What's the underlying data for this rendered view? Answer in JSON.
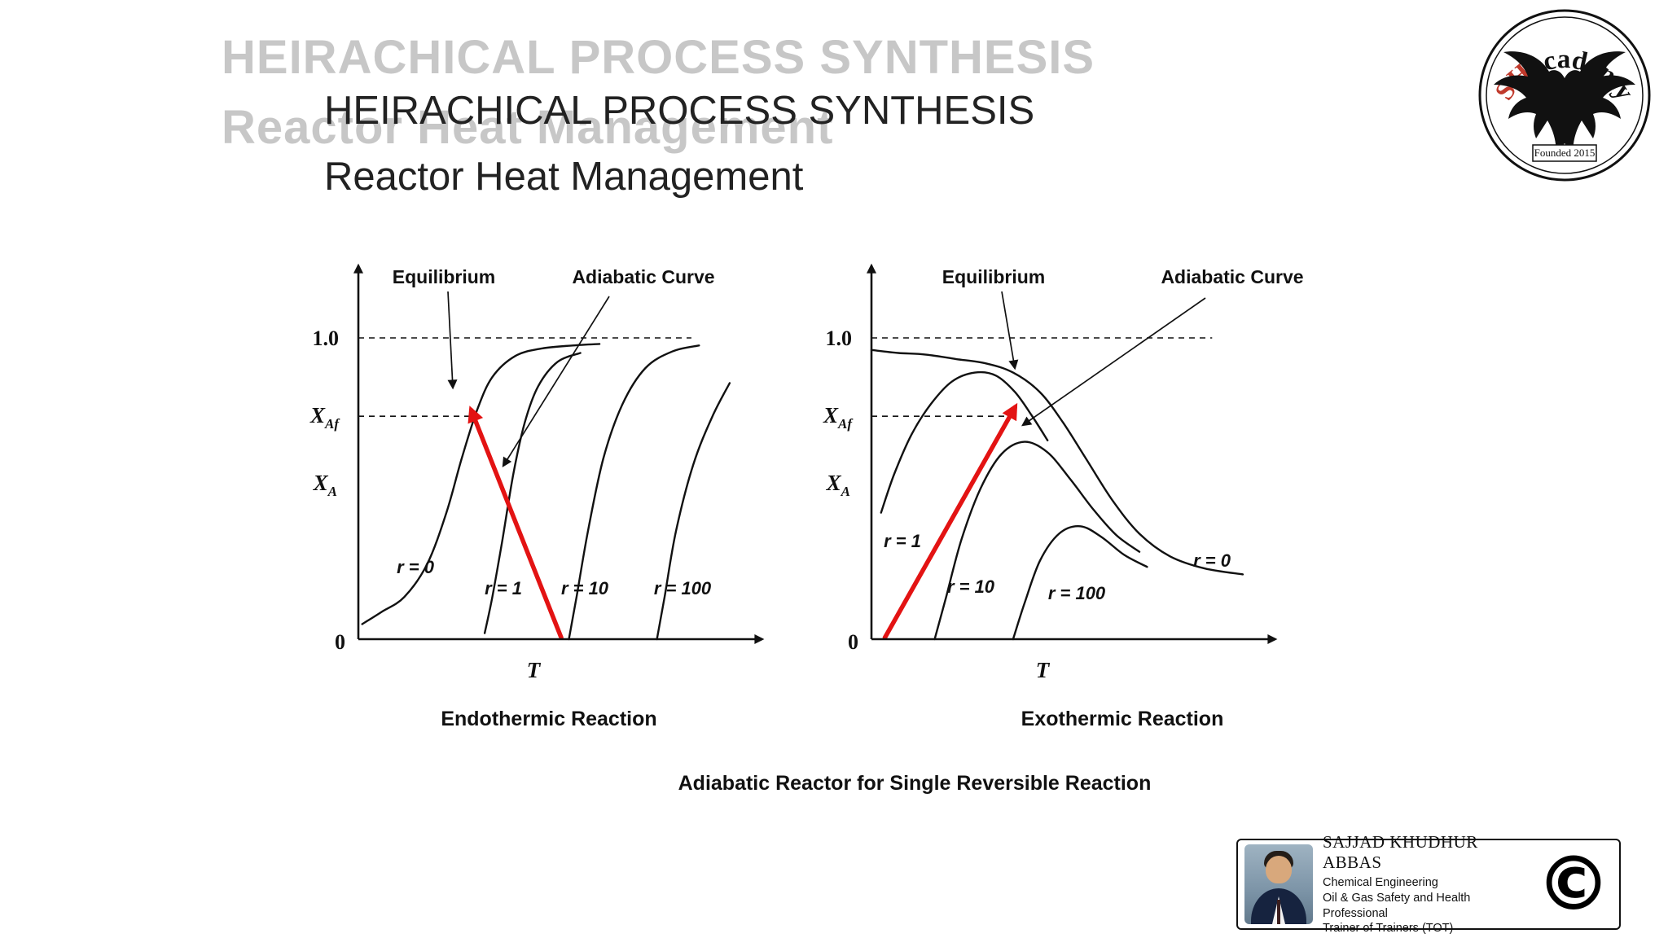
{
  "slide": {
    "ghost_title": {
      "line1": "HEIRACHICAL PROCESS SYNTHESIS",
      "line2": "Reactor Heat Management"
    },
    "title": {
      "line1": "HEIRACHICAL PROCESS SYNTHESIS",
      "line2": "Reactor Heat Management"
    },
    "caption": "Adiabatic Reactor for Single Reversible Reaction"
  },
  "logo": {
    "sh": "SH",
    "academy": "academy",
    "founded": "Founded 2015",
    "accent_color": "#c0392b"
  },
  "credit": {
    "name": "SAJJAD KHUDHUR ABBAS",
    "lines": [
      "Chemical Engineering",
      "Oil & Gas Safety and Health Professional",
      "Trainer of Trainers (TOT)"
    ],
    "copyright": "©"
  },
  "chart_data": [
    {
      "id": "endothermic",
      "type": "line",
      "title": "Endothermic Reaction",
      "xlabel": "T",
      "ylabel_main": "X",
      "ylabel_sub": "A",
      "yticks": {
        "top": "1.0",
        "xaf_main": "X",
        "xaf_sub": "Af",
        "zero": "0"
      },
      "annotations": {
        "equilibrium": "Equilibrium",
        "adiabatic": "Adiabatic Curve"
      },
      "ylim": [
        0,
        1.0
      ],
      "grid": false,
      "reference_lines": [
        {
          "y": 1.0,
          "x_end": 0.87
        },
        {
          "y": 0.74,
          "x_end": 0.295
        }
      ],
      "series": [
        {
          "name": "equilibrium-r0",
          "label": "r = 0",
          "points": [
            [
              0.01,
              0.05
            ],
            [
              0.06,
              0.09
            ],
            [
              0.12,
              0.14
            ],
            [
              0.18,
              0.25
            ],
            [
              0.23,
              0.42
            ],
            [
              0.27,
              0.6
            ],
            [
              0.31,
              0.76
            ],
            [
              0.35,
              0.87
            ],
            [
              0.41,
              0.94
            ],
            [
              0.48,
              0.965
            ],
            [
              0.56,
              0.975
            ],
            [
              0.63,
              0.98
            ]
          ]
        },
        {
          "name": "adiabatic-r1",
          "label": "r = 1",
          "points": [
            [
              0.33,
              0.02
            ],
            [
              0.35,
              0.14
            ],
            [
              0.375,
              0.32
            ],
            [
              0.405,
              0.55
            ],
            [
              0.435,
              0.72
            ],
            [
              0.47,
              0.84
            ],
            [
              0.52,
              0.92
            ],
            [
              0.58,
              0.95
            ]
          ]
        },
        {
          "name": "adiabatic-r10",
          "label": "r = 10",
          "points": [
            [
              0.55,
              0.0
            ],
            [
              0.57,
              0.14
            ],
            [
              0.6,
              0.36
            ],
            [
              0.64,
              0.6
            ],
            [
              0.69,
              0.78
            ],
            [
              0.75,
              0.9
            ],
            [
              0.82,
              0.955
            ],
            [
              0.89,
              0.975
            ]
          ]
        },
        {
          "name": "adiabatic-r100",
          "label": "r = 100",
          "points": [
            [
              0.78,
              0.0
            ],
            [
              0.8,
              0.14
            ],
            [
              0.83,
              0.36
            ],
            [
              0.875,
              0.58
            ],
            [
              0.925,
              0.74
            ],
            [
              0.97,
              0.85
            ]
          ]
        }
      ],
      "operating_line": {
        "from": [
          0.53,
          0.005
        ],
        "to": [
          0.295,
          0.76
        ],
        "color": "#e31313"
      }
    },
    {
      "id": "exothermic",
      "type": "line",
      "title": "Exothermic Reaction",
      "xlabel": "T",
      "ylabel_main": "X",
      "ylabel_sub": "A",
      "yticks": {
        "top": "1.0",
        "xaf_main": "X",
        "xaf_sub": "Af",
        "zero": "0"
      },
      "annotations": {
        "equilibrium": "Equilibrium",
        "adiabatic": "Adiabatic Curve"
      },
      "ylim": [
        0,
        1.0
      ],
      "grid": false,
      "reference_lines": [
        {
          "y": 1.0,
          "x_end": 0.89
        },
        {
          "y": 0.74,
          "x_end": 0.375
        }
      ],
      "series": [
        {
          "name": "equilibrium-r0",
          "label": "r = 0",
          "points": [
            [
              0.0,
              0.96
            ],
            [
              0.07,
              0.95
            ],
            [
              0.14,
              0.945
            ],
            [
              0.22,
              0.93
            ],
            [
              0.3,
              0.915
            ],
            [
              0.37,
              0.885
            ],
            [
              0.44,
              0.82
            ],
            [
              0.5,
              0.72
            ],
            [
              0.56,
              0.6
            ],
            [
              0.63,
              0.46
            ],
            [
              0.7,
              0.35
            ],
            [
              0.78,
              0.275
            ],
            [
              0.87,
              0.235
            ],
            [
              0.97,
              0.215
            ]
          ]
        },
        {
          "name": "adiabatic-r1",
          "label": "r = 1",
          "points": [
            [
              0.025,
              0.42
            ],
            [
              0.06,
              0.55
            ],
            [
              0.105,
              0.68
            ],
            [
              0.155,
              0.78
            ],
            [
              0.21,
              0.855
            ],
            [
              0.27,
              0.885
            ],
            [
              0.325,
              0.875
            ],
            [
              0.375,
              0.82
            ],
            [
              0.42,
              0.74
            ],
            [
              0.46,
              0.66
            ]
          ]
        },
        {
          "name": "adiabatic-r10",
          "label": "r = 10",
          "points": [
            [
              0.165,
              0.0
            ],
            [
              0.195,
              0.14
            ],
            [
              0.235,
              0.33
            ],
            [
              0.285,
              0.5
            ],
            [
              0.34,
              0.615
            ],
            [
              0.4,
              0.655
            ],
            [
              0.46,
              0.62
            ],
            [
              0.52,
              0.53
            ],
            [
              0.58,
              0.43
            ],
            [
              0.64,
              0.345
            ],
            [
              0.7,
              0.29
            ]
          ]
        },
        {
          "name": "adiabatic-r100",
          "label": "r = 100",
          "points": [
            [
              0.37,
              0.0
            ],
            [
              0.4,
              0.12
            ],
            [
              0.44,
              0.26
            ],
            [
              0.49,
              0.35
            ],
            [
              0.545,
              0.375
            ],
            [
              0.6,
              0.34
            ],
            [
              0.66,
              0.28
            ],
            [
              0.72,
              0.24
            ]
          ]
        }
      ],
      "operating_line": {
        "from": [
          0.035,
          0.005
        ],
        "to": [
          0.375,
          0.77
        ],
        "color": "#e31313"
      }
    }
  ]
}
